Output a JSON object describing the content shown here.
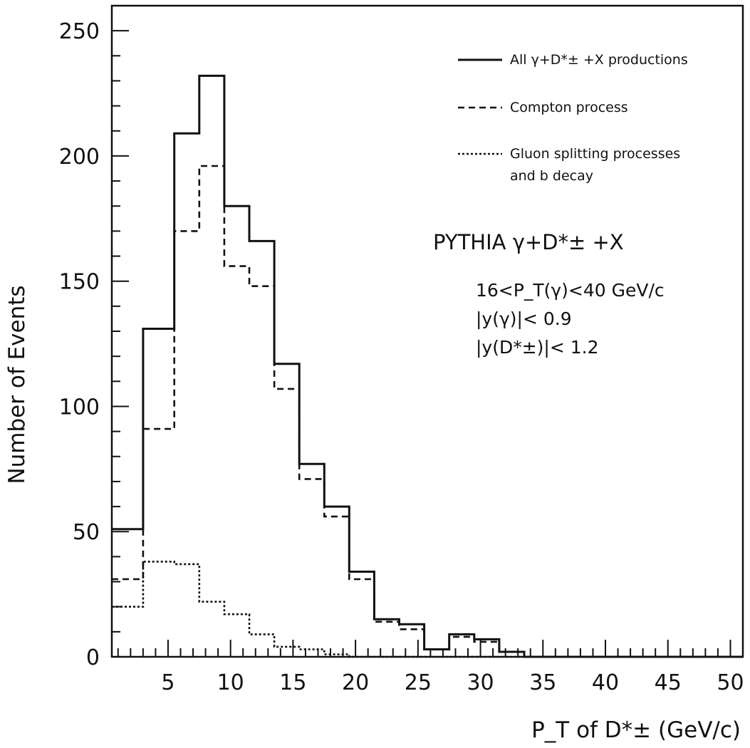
{
  "chart_data": {
    "type": "line",
    "xlabel": "P_T of D*± (GeV/c)",
    "ylabel": "Number of Events",
    "xlim": [
      0.5,
      51
    ],
    "ylim": [
      0,
      260
    ],
    "x_ticks": [
      5,
      10,
      15,
      20,
      25,
      30,
      35,
      40,
      45,
      50
    ],
    "y_ticks": [
      0,
      50,
      100,
      150,
      200,
      250
    ],
    "bin_edges": [
      0.5,
      3,
      5.5,
      7.5,
      9.5,
      11.5,
      13.5,
      15.5,
      17.5,
      19.5,
      21.5,
      23.5,
      25.5,
      27.5,
      29.5,
      31.5,
      33.5,
      35.5,
      37.5,
      39.5,
      41.5,
      43.5,
      45.5,
      47.5,
      49.5,
      51
    ],
    "series": [
      {
        "name": "All γ+D*± +X productions",
        "style": "solid",
        "values": [
          51,
          131,
          209,
          232,
          180,
          166,
          117,
          77,
          60,
          34,
          15,
          13,
          3,
          9,
          7,
          2,
          0,
          0,
          0,
          0,
          0,
          0,
          0,
          0,
          0
        ]
      },
      {
        "name": "Compton process",
        "style": "dashed",
        "values": [
          31,
          91,
          170,
          196,
          156,
          148,
          107,
          71,
          56,
          31,
          14,
          11,
          3,
          8,
          6,
          2,
          0,
          0,
          0,
          0,
          0,
          0,
          0,
          0,
          0
        ]
      },
      {
        "name": "Gluon splitting processes and b decay",
        "style": "dotted",
        "values": [
          20,
          38,
          37,
          22,
          17,
          9,
          4,
          3,
          1,
          0,
          0,
          0,
          0,
          0,
          0,
          0,
          0,
          0,
          0,
          0,
          0,
          0,
          0,
          0,
          0
        ]
      }
    ],
    "legend": {
      "placement": "top-right",
      "entries": [
        {
          "text": "All γ+D*± +X productions",
          "style": "solid"
        },
        {
          "text": "Compton process",
          "style": "dashed"
        },
        {
          "text": "Gluon splitting processes",
          "style": "dotted"
        },
        {
          "text": "and b decay",
          "style": "none"
        }
      ]
    },
    "annotations": [
      "PYTHIA γ+D*± +X",
      "16<P_T(γ)<40 GeV/c",
      "|y(γ)|< 0.9",
      "|y(D*±)|< 1.2"
    ]
  },
  "colors": {
    "ink": "#111111",
    "background": "#ffffff"
  }
}
